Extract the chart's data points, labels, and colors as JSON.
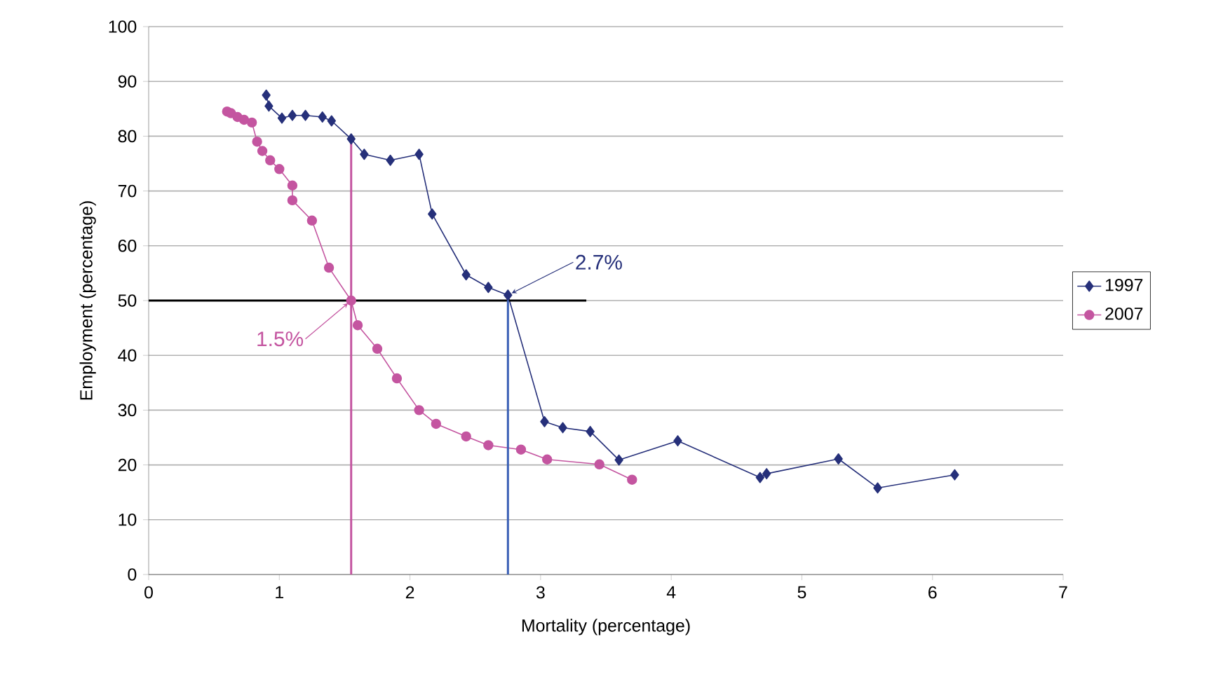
{
  "chart_data": {
    "type": "line",
    "xlabel": "Mortality (percentage)",
    "ylabel": "Employment (percentage)",
    "xlim": [
      0,
      7
    ],
    "xticks": [
      0,
      1,
      2,
      3,
      4,
      5,
      6,
      7
    ],
    "ylim": [
      0,
      100
    ],
    "yticks": [
      0,
      10,
      20,
      30,
      40,
      50,
      60,
      70,
      80,
      90,
      100
    ],
    "grid": "y",
    "legend": "right",
    "series": [
      {
        "name": "1997",
        "color": "#26307a",
        "marker": "diamond",
        "x": [
          0.9,
          0.92,
          1.02,
          1.1,
          1.2,
          1.33,
          1.4,
          1.55,
          1.65,
          1.85,
          2.07,
          2.17,
          2.43,
          2.6,
          2.75,
          3.03,
          3.17,
          3.38,
          3.6,
          4.05,
          4.68,
          4.73,
          5.28,
          5.58,
          6.17
        ],
        "values": [
          87.5,
          85.5,
          83.3,
          83.8,
          83.8,
          83.5,
          82.8,
          79.5,
          76.7,
          75.6,
          76.7,
          65.8,
          54.7,
          52.4,
          51,
          27.9,
          26.8,
          26.1,
          20.9,
          24.4,
          17.7,
          18.4,
          21.1,
          15.8,
          18.2
        ]
      },
      {
        "name": "2007",
        "color": "#c455a0",
        "marker": "circle",
        "x": [
          0.6,
          0.63,
          0.68,
          0.73,
          0.79,
          0.83,
          0.87,
          0.93,
          1.0,
          1.1,
          1.1,
          1.25,
          1.38,
          1.55,
          1.6,
          1.75,
          1.9,
          2.07,
          2.2,
          2.43,
          2.6,
          2.85,
          3.05,
          3.45,
          3.7
        ],
        "values": [
          84.5,
          84.2,
          83.5,
          83,
          82.5,
          79,
          77.3,
          75.6,
          74,
          71,
          68.3,
          64.6,
          56,
          50,
          45.5,
          41.2,
          35.8,
          30,
          27.5,
          25.2,
          23.6,
          22.8,
          21,
          20.1,
          17.3
        ]
      },
      {
        "color": "#000000",
        "marker": "none",
        "x": [
          0,
          3.35
        ],
        "values": [
          50,
          50
        ]
      },
      {
        "color": "#c455a0",
        "marker": "none",
        "x": [
          1.55,
          1.55
        ],
        "values": [
          0,
          79
        ]
      },
      {
        "color": "#3a5fb5",
        "marker": "none",
        "x": [
          2.75,
          2.75
        ],
        "values": [
          0,
          51
        ]
      }
    ],
    "annotations": [
      {
        "text": "2.7%",
        "x": 2.75,
        "y": 51
      },
      {
        "text": "1.5%",
        "x": 1.55,
        "y": 50
      }
    ]
  }
}
